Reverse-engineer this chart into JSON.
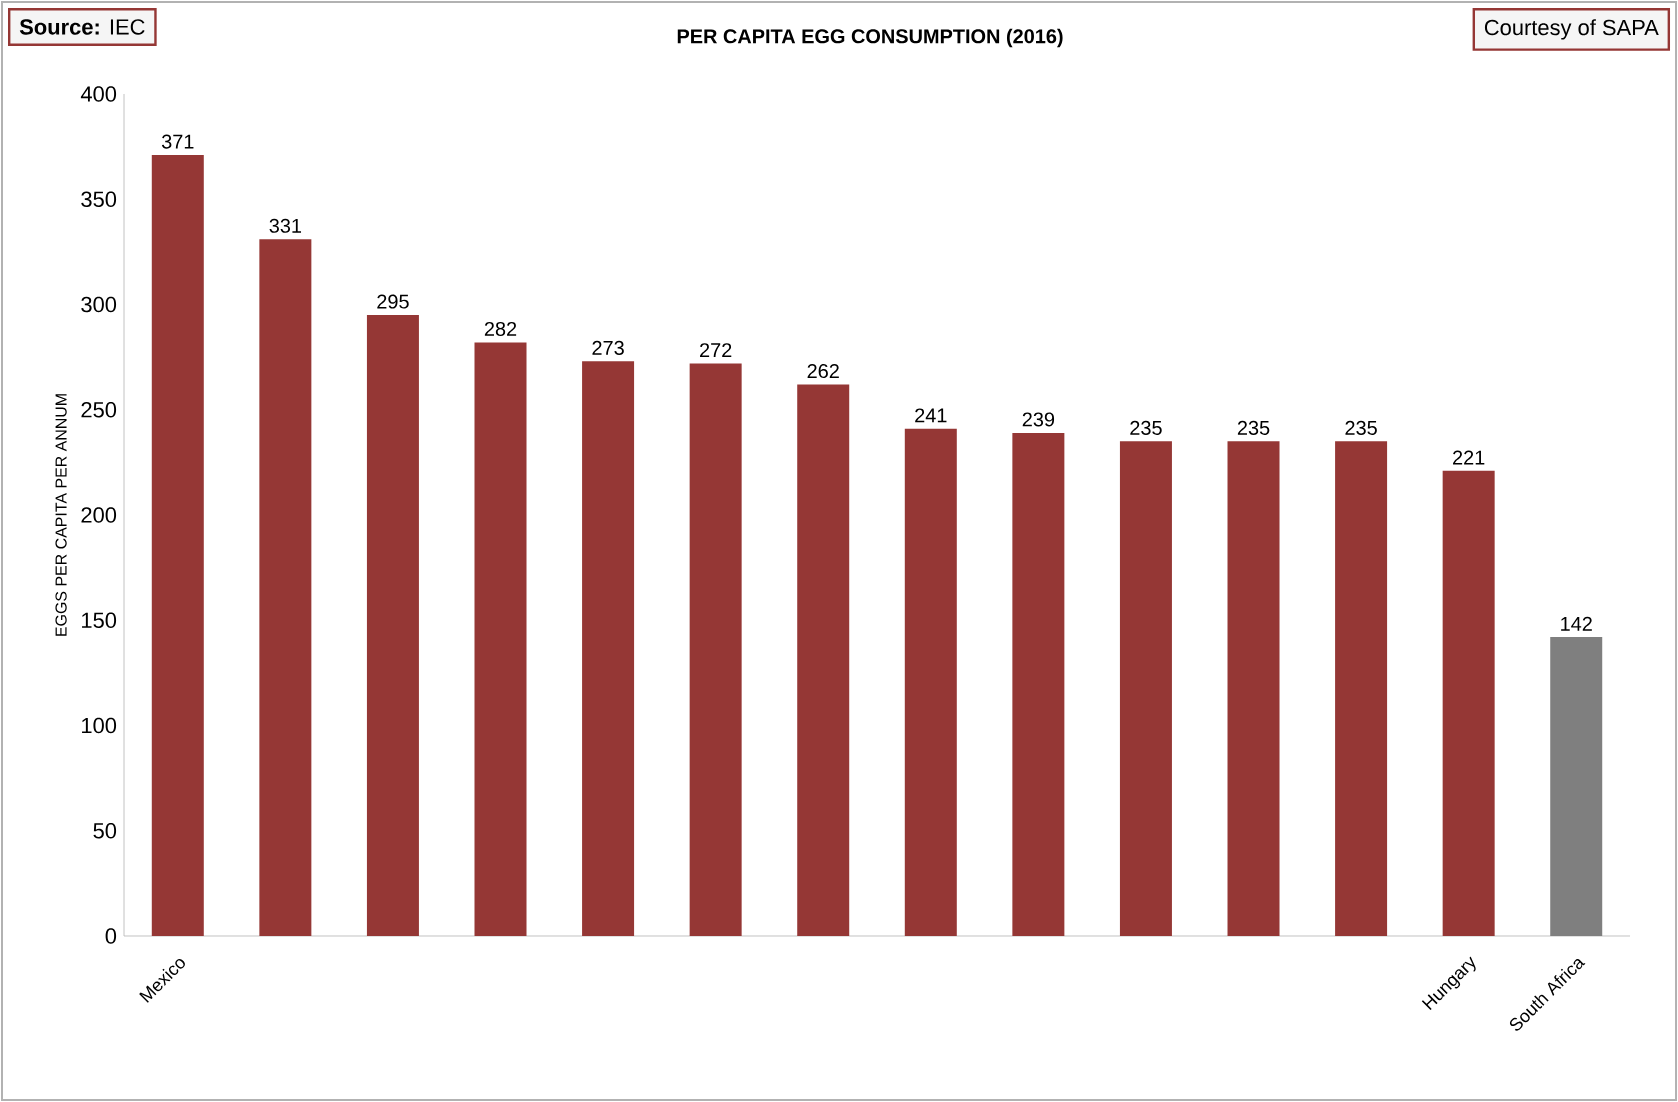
{
  "chart_data": {
    "type": "bar",
    "title": "PER CAPITA EGG CONSUMPTION (2016)",
    "ylabel": "EGGS PER CAPITA PER ANNUM",
    "categories": [
      "Mexico",
      null,
      null,
      null,
      null,
      null,
      null,
      null,
      null,
      null,
      null,
      null,
      "Hungary",
      "South Africa"
    ],
    "values": [
      371,
      331,
      295,
      282,
      273,
      272,
      262,
      241,
      239,
      235,
      235,
      235,
      221,
      142
    ],
    "colors": [
      "#953735",
      "#953735",
      "#953735",
      "#953735",
      "#953735",
      "#953735",
      "#953735",
      "#953735",
      "#953735",
      "#953735",
      "#953735",
      "#953735",
      "#953735",
      "#7f7f7f"
    ],
    "ylim": [
      0,
      400
    ],
    "yticks": [
      0,
      50,
      100,
      150,
      200,
      250,
      300,
      350,
      400
    ],
    "grid": false,
    "data_labels": true,
    "annotations": [
      "**Source:** IEC",
      "Courtesy of SAPA"
    ]
  }
}
